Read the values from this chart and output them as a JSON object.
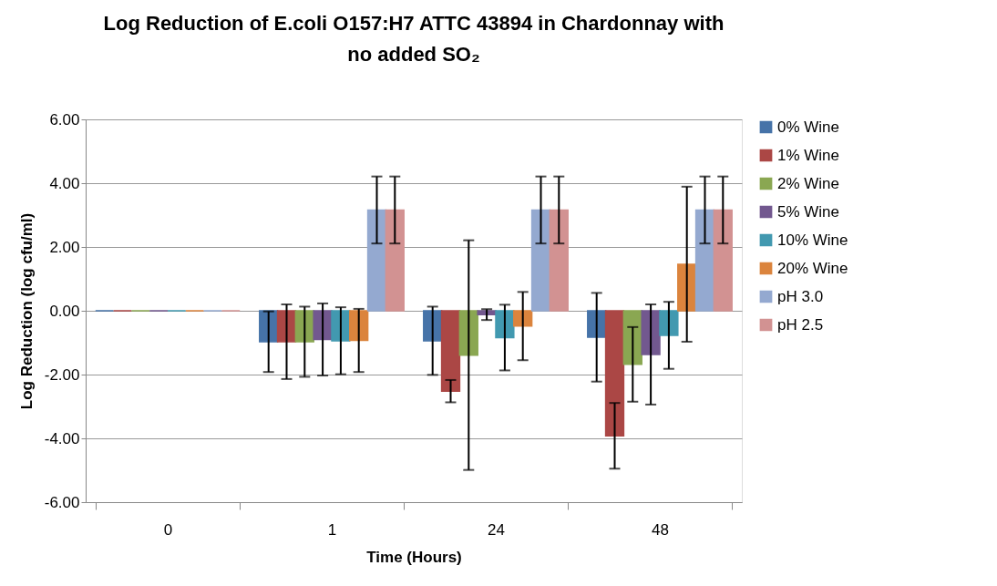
{
  "chart_data": {
    "type": "bar",
    "title": [
      "Log Reduction of E.coli O157:H7 ATTC 43894 in Chardonnay with",
      "no   added SO₂"
    ],
    "xlabel": "Time (Hours)",
    "ylabel": "Log Reduction (log cfu/ml)",
    "categories": [
      "0",
      "1",
      "24",
      "48"
    ],
    "series": [
      {
        "name": "0% Wine",
        "color": "#4673a8",
        "values": [
          0,
          -0.97,
          -0.94,
          -0.83
        ],
        "errors": [
          null,
          0.95,
          1.07,
          1.39
        ]
      },
      {
        "name": "1% Wine",
        "color": "#ab4745",
        "values": [
          0,
          -0.97,
          -2.52,
          -3.92
        ],
        "errors": [
          null,
          1.17,
          0.35,
          1.03
        ]
      },
      {
        "name": "2% Wine",
        "color": "#8aa752",
        "values": [
          0,
          -0.97,
          -1.39,
          -1.68
        ],
        "errors": [
          null,
          1.1,
          3.6,
          1.17
        ]
      },
      {
        "name": "5% Wine",
        "color": "#72588f",
        "values": [
          0,
          -0.9,
          -0.12,
          -1.37
        ],
        "errors": [
          null,
          1.13,
          0.17,
          1.57
        ]
      },
      {
        "name": "10% Wine",
        "color": "#4299b0",
        "values": [
          0,
          -0.94,
          -0.84,
          -0.77
        ],
        "errors": [
          null,
          1.05,
          1.03,
          1.05
        ]
      },
      {
        "name": "20% Wine",
        "color": "#db843d",
        "values": [
          0,
          -0.93,
          -0.48,
          1.46
        ],
        "errors": [
          null,
          0.99,
          1.07,
          2.43
        ]
      },
      {
        "name": "pH 3.0",
        "color": "#94a9d0",
        "values": [
          0,
          3.16,
          3.16,
          3.16
        ],
        "errors": [
          null,
          1.05,
          1.05,
          1.05
        ]
      },
      {
        "name": "pH 2.5",
        "color": "#d29292",
        "values": [
          0,
          3.16,
          3.16,
          3.16
        ],
        "errors": [
          null,
          1.05,
          1.05,
          1.05
        ]
      }
    ],
    "ylim": [
      -6,
      6
    ],
    "yticks": [
      {
        "value": -6,
        "label": "-6.00"
      },
      {
        "value": -4,
        "label": "-4.00"
      },
      {
        "value": -2,
        "label": "-2.00"
      },
      {
        "value": 0,
        "label": "0.00"
      },
      {
        "value": 2,
        "label": "2.00"
      },
      {
        "value": 4,
        "label": "4.00"
      },
      {
        "value": 6,
        "label": "6.00"
      }
    ],
    "grid": "y",
    "legend": "right"
  }
}
